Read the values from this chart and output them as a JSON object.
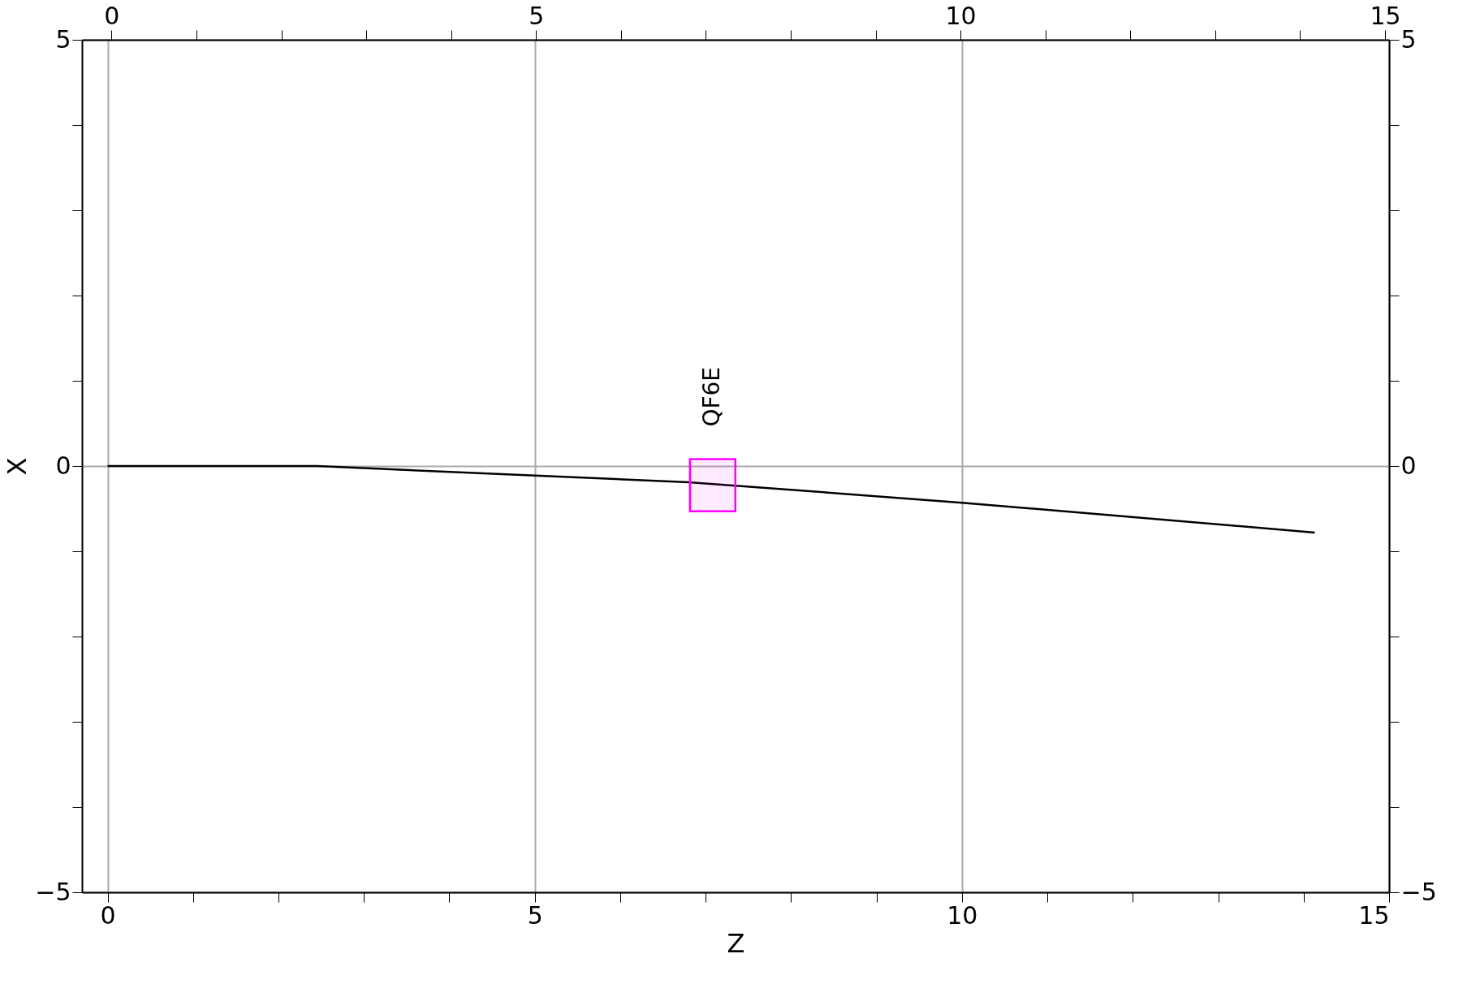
{
  "chart_data": {
    "type": "line",
    "xlabel": "Z",
    "ylabel": "X",
    "xlim": [
      -0.3,
      15
    ],
    "ylim": [
      -5,
      5
    ],
    "xticks": [
      0,
      {
        "value": 1,
        "label": null
      },
      {
        "value": 2,
        "label": null
      },
      {
        "value": 3,
        "label": null
      },
      {
        "value": 4,
        "label": null
      },
      5,
      {
        "value": 6,
        "label": null
      },
      {
        "value": 7,
        "label": null
      },
      {
        "value": 8,
        "label": null
      },
      {
        "value": 9,
        "label": null
      },
      10,
      {
        "value": 11,
        "label": null
      },
      {
        "value": 12,
        "label": null
      },
      {
        "value": 13,
        "label": null
      },
      {
        "value": 14,
        "label": null
      },
      15
    ],
    "x2lim": [
      -0.3,
      15
    ],
    "x2ticks": [
      0,
      {
        "value": 1,
        "label": null
      },
      {
        "value": 2,
        "label": null
      },
      {
        "value": 3,
        "label": null
      },
      {
        "value": 4,
        "label": null
      },
      5,
      {
        "value": 6,
        "label": null
      },
      {
        "value": 7,
        "label": null
      },
      {
        "value": 8,
        "label": null
      },
      {
        "value": 9,
        "label": null
      },
      10,
      {
        "value": 11,
        "label": null
      },
      {
        "value": 12,
        "label": null
      },
      {
        "value": 13,
        "label": null
      },
      {
        "value": 14,
        "label": null
      },
      15
    ],
    "yticks": [
      -5,
      {
        "value": -4,
        "label": null
      },
      {
        "value": -3,
        "label": null
      },
      {
        "value": -2,
        "label": null
      },
      {
        "value": -1,
        "label": null
      },
      0,
      {
        "value": 1,
        "label": null
      },
      {
        "value": 2,
        "label": null
      },
      {
        "value": 3,
        "label": null
      },
      {
        "value": 4,
        "label": null
      },
      5
    ],
    "y2lim": [
      -5,
      5
    ],
    "y2ticks": [
      -5,
      {
        "value": -4,
        "label": null
      },
      {
        "value": -3,
        "label": null
      },
      {
        "value": -2,
        "label": null
      },
      {
        "value": -1,
        "label": null
      },
      0,
      {
        "value": 1,
        "label": null
      },
      {
        "value": 2,
        "label": null
      },
      {
        "value": 3,
        "label": null
      },
      {
        "value": 4,
        "label": null
      },
      5
    ],
    "grid": true,
    "series": [
      {
        "x": [
          0,
          2.45,
          6.8,
          7.35,
          10,
          14.13
        ],
        "values": [
          0,
          0,
          -0.19,
          -0.23,
          -0.43,
          -0.78
        ],
        "color": "#000000",
        "line_style": "solid"
      },
      {
        "type": "bar",
        "name": "QF6E",
        "x": [
          7.08
        ],
        "base": [
          0.08
        ],
        "values": [
          -0.61
        ],
        "color": "#ff00ff"
      }
    ]
  }
}
